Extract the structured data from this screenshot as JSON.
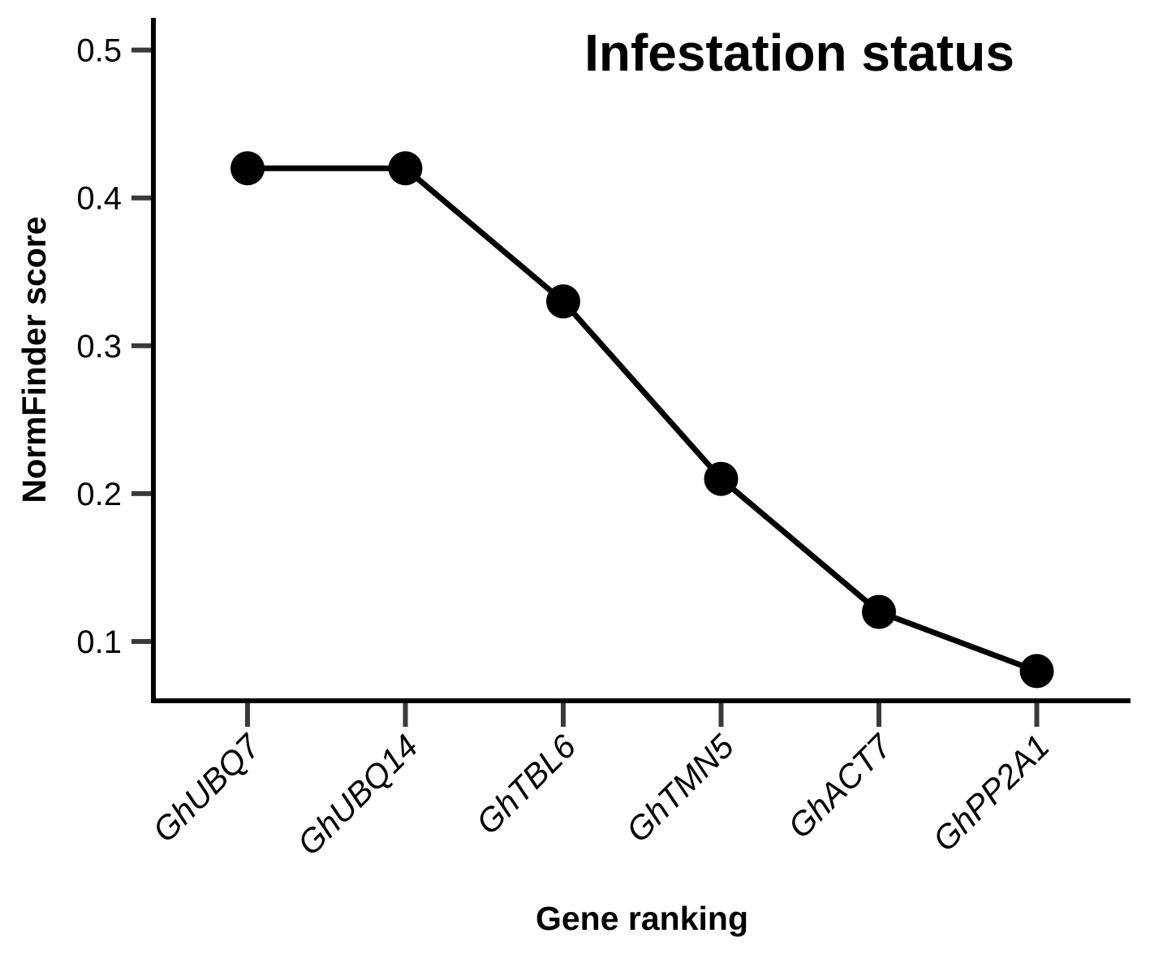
{
  "chart_data": {
    "type": "line",
    "title": "Infestation status",
    "xlabel": "Gene ranking",
    "ylabel": "NormFinder score",
    "categories": [
      "GhUBQ7",
      "GhUBQ14",
      "GhTBL6",
      "GhTMN5",
      "GhACT7",
      "GhPP2A1"
    ],
    "series": [
      {
        "values": [
          0.42,
          0.42,
          0.33,
          0.21,
          0.12,
          0.08
        ]
      }
    ],
    "ylim": [
      0.061,
      0.52
    ],
    "yticks": [
      0.1,
      0.2,
      0.3,
      0.4,
      0.5
    ],
    "ytick_labels": [
      "0.1",
      "0.2",
      "0.3",
      "0.4",
      "0.5"
    ],
    "grid": false,
    "legend": "none",
    "colors": {
      "line": "#000000",
      "marker": "#000000",
      "axis": "#000000",
      "tick": "#3a3a3a"
    }
  }
}
